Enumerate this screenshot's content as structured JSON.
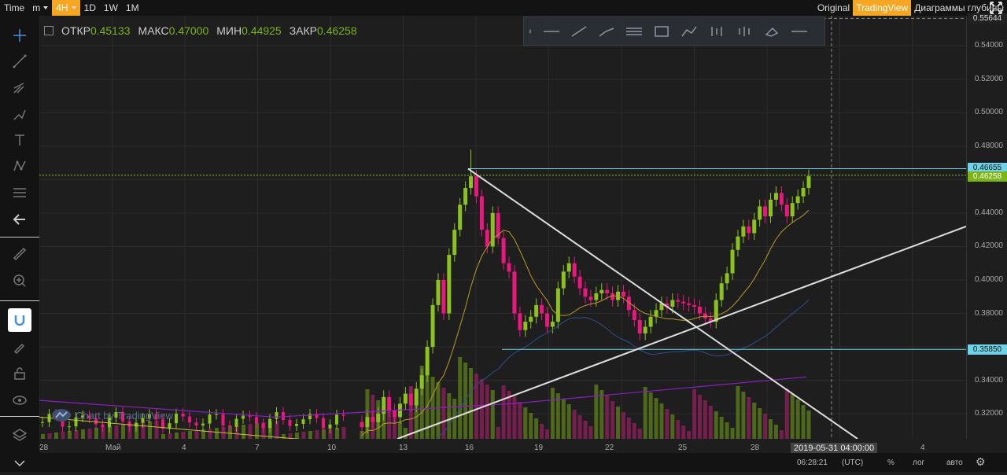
{
  "topbar": {
    "items": [
      {
        "label": "Time"
      },
      {
        "label": "m",
        "caret": true
      },
      {
        "label": "4H",
        "active": true,
        "caret": true
      },
      {
        "label": "1D"
      },
      {
        "label": "1W"
      },
      {
        "label": "1M"
      }
    ],
    "right": [
      {
        "label": "Original"
      },
      {
        "label": "TradingView",
        "active": true
      },
      {
        "label": "Диаграммы глубины"
      }
    ],
    "fullscreen_icon": "fullscreen-icon"
  },
  "sidebar": {
    "tools": [
      "crosshair-icon",
      "trend-line-icon",
      "pitchfork-icon",
      "brush-icon",
      "text-icon",
      "pattern-icon",
      "fib-icon",
      "arrow-left-icon",
      "ruler-icon",
      "zoom-icon",
      "magnet-icon",
      "lock-pencil-icon",
      "lock-icon",
      "eye-icon",
      "layers-icon",
      "chevron-down-icon"
    ]
  },
  "ohlc": {
    "open_label": "ОТКР",
    "open": "0.45133",
    "high_label": "МАКС",
    "high": "0.47000",
    "low_label": "МИН",
    "low": "0.44925",
    "close_label": "ЗАКР",
    "close": "0.46258"
  },
  "drawing_toolbar": [
    "drag-handle-icon",
    "horizontal-ray-icon",
    "trend-line-icon",
    "ray-icon",
    "parallel-lines-icon",
    "rectangle-icon",
    "brush-icon",
    "candles-icon",
    "candles-alt-icon",
    "eraser-icon",
    "horizontal-line-icon"
  ],
  "price_axis": {
    "ticks": [
      "0.54000",
      "0.52000",
      "0.50000",
      "0.48000",
      "0.44000",
      "0.42000",
      "0.40000",
      "0.38000",
      "0.34000",
      "0.32000"
    ],
    "top_badge": "0.55644",
    "high_line_badge": "0.46655",
    "last_price_badge": "0.46258",
    "low_line_badge": "0.35850"
  },
  "time_axis": {
    "ticks": [
      "28",
      "Май",
      "4",
      "7",
      "10",
      "13",
      "16",
      "19",
      "22",
      "25",
      "28",
      "4"
    ],
    "crosshair_label": "2019-05-31 04:00:00"
  },
  "bottom_bar": {
    "time": "06:28:21",
    "tz": "(UTC)",
    "percent": "%",
    "log": "лог",
    "auto": "авто",
    "settings_icon": "gear-icon"
  },
  "watermark": "Chart by TradingView",
  "colors": {
    "accent": "#f5a623",
    "up": "#8bc21e",
    "down": "#e9177e",
    "level_line": "#6fd3e8"
  },
  "chart_data": {
    "type": "candlestick",
    "interval": "4H",
    "y_range": [
      0.305,
      0.558
    ],
    "levels": [
      0.46655,
      0.3585
    ],
    "last_close": 0.46258,
    "candles_close": [
      0.312,
      0.318,
      0.315,
      0.32,
      0.33,
      0.322,
      0.318,
      0.326,
      0.332,
      0.325,
      0.335,
      0.343,
      0.36,
      0.385,
      0.4,
      0.38,
      0.415,
      0.43,
      0.445,
      0.455,
      0.462,
      0.45,
      0.43,
      0.42,
      0.44,
      0.425,
      0.41,
      0.405,
      0.38,
      0.37,
      0.375,
      0.378,
      0.385,
      0.38,
      0.372,
      0.375,
      0.395,
      0.405,
      0.41,
      0.402,
      0.395,
      0.39,
      0.388,
      0.392,
      0.394,
      0.392,
      0.388,
      0.393,
      0.39,
      0.382,
      0.376,
      0.368,
      0.372,
      0.378,
      0.382,
      0.386,
      0.384,
      0.388,
      0.387,
      0.386,
      0.385,
      0.384,
      0.38,
      0.377,
      0.375,
      0.388,
      0.398,
      0.404,
      0.418,
      0.426,
      0.432,
      0.428,
      0.436,
      0.444,
      0.438,
      0.448,
      0.452,
      0.445,
      0.438,
      0.446,
      0.45,
      0.455,
      0.462
    ]
  }
}
